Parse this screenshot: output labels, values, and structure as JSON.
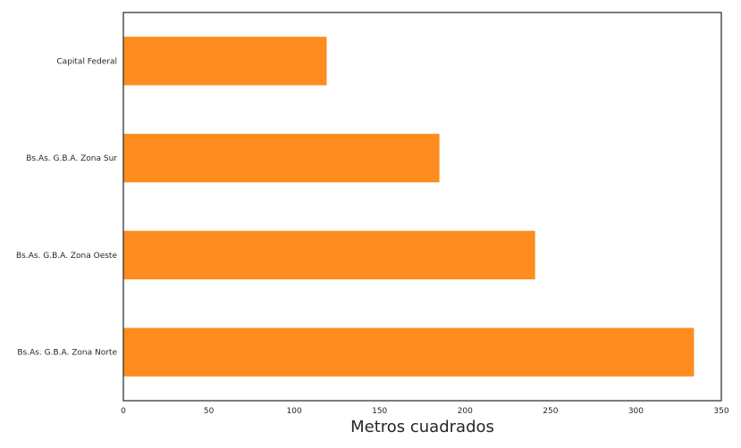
{
  "chart_data": {
    "type": "bar",
    "orientation": "horizontal",
    "categories": [
      "Capital Federal",
      "Bs.As. G.B.A. Zona Sur",
      "Bs.As. G.B.A. Zona Oeste",
      "Bs.As. G.B.A. Zona Norte"
    ],
    "values": [
      119,
      185,
      241,
      334
    ],
    "xlabel": "Metros cuadrados",
    "ylabel": "",
    "xlim": [
      0,
      350
    ],
    "xticks": [
      "0",
      "50",
      "100",
      "150",
      "200",
      "250",
      "300",
      "350"
    ],
    "grid": false,
    "bar_color": "#ff8c1f",
    "frame_color": "#262626"
  }
}
